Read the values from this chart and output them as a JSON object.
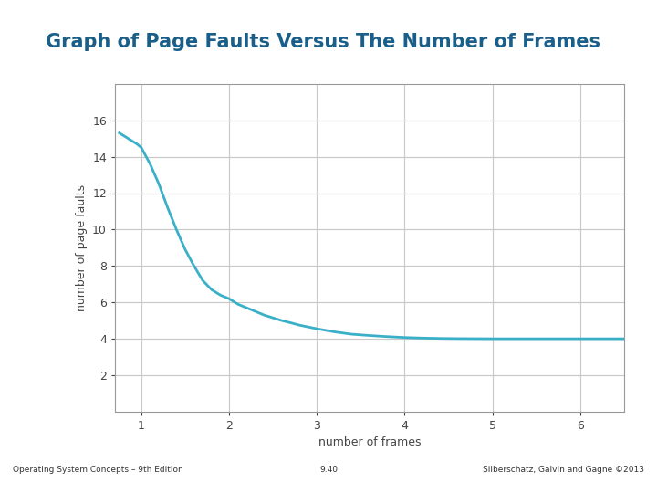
{
  "title": "Graph of Page Faults Versus The Number of Frames",
  "xlabel": "number of frames",
  "ylabel": "number of page faults",
  "xlim": [
    0.7,
    6.5
  ],
  "ylim": [
    0,
    18
  ],
  "yticks": [
    2,
    4,
    6,
    8,
    10,
    12,
    14,
    16
  ],
  "xticks": [
    1,
    2,
    3,
    4,
    5,
    6
  ],
  "line_color": "#3ab0c8",
  "line_width": 2.0,
  "bg_color": "#ffffff",
  "grid_color": "#c8c8c8",
  "title_color": "#1a5f8a",
  "title_fontsize": 15,
  "label_fontsize": 9,
  "tick_fontsize": 9,
  "footer_left": "Operating System Concepts – 9th Edition",
  "footer_center": "9.40",
  "footer_right": "Silberschatz, Galvin and Gagne ©2013",
  "left_bar_color": "#2e6da4",
  "top_bar_color": "#3ab0c8",
  "curve_x": [
    0.75,
    0.85,
    0.95,
    1.0,
    1.1,
    1.2,
    1.3,
    1.4,
    1.5,
    1.6,
    1.7,
    1.8,
    1.9,
    2.0,
    2.1,
    2.2,
    2.3,
    2.4,
    2.5,
    2.6,
    2.7,
    2.8,
    2.9,
    3.0,
    3.2,
    3.4,
    3.6,
    3.8,
    4.0,
    4.2,
    4.4,
    4.6,
    4.8,
    5.0,
    5.2,
    5.4,
    5.6,
    5.8,
    6.0,
    6.2,
    6.5
  ],
  "curve_y": [
    15.3,
    15.0,
    14.7,
    14.5,
    13.6,
    12.5,
    11.2,
    10.0,
    8.9,
    8.0,
    7.2,
    6.7,
    6.4,
    6.2,
    5.9,
    5.7,
    5.5,
    5.3,
    5.15,
    5.0,
    4.88,
    4.75,
    4.65,
    4.55,
    4.38,
    4.25,
    4.18,
    4.12,
    4.07,
    4.04,
    4.02,
    4.01,
    4.005,
    4.0,
    4.0,
    4.0,
    4.0,
    4.0,
    4.0,
    4.0,
    4.0
  ]
}
